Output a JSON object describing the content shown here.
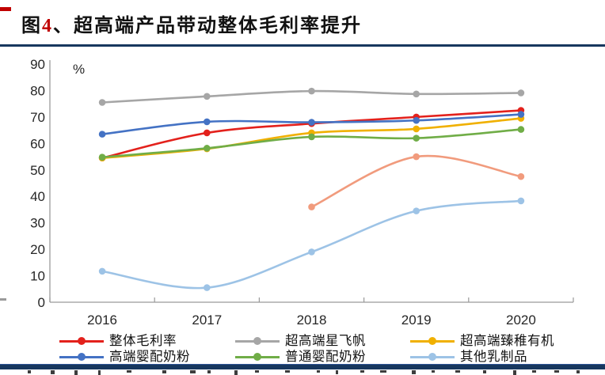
{
  "title": {
    "figure_word": "图",
    "figure_number": "4",
    "rest": "、超高端产品带动整体毛利率提升",
    "full": "图4、超高端产品带动整体毛利率提升"
  },
  "chart_data": {
    "type": "line",
    "title": "图4、超高端产品带动整体毛利率提升",
    "unit_label": "%",
    "x": [
      "2016",
      "2017",
      "2018",
      "2019",
      "2020"
    ],
    "ylim": [
      0,
      90
    ],
    "yticks": [
      0,
      10,
      20,
      30,
      40,
      50,
      60,
      70,
      80,
      90
    ],
    "grid": false,
    "legend_position": "bottom",
    "line_style": "smoothed with circular markers",
    "series": [
      {
        "name": "整体毛利率",
        "color": "#E3211C",
        "values": [
          54.5,
          64.0,
          67.5,
          70.0,
          72.5
        ],
        "in_legend": true
      },
      {
        "name": "超高端星飞帆",
        "color": "#A6A6A6",
        "values": [
          75.5,
          77.8,
          79.8,
          78.7,
          79.1
        ],
        "in_legend": true
      },
      {
        "name": "超高端臻稚有机",
        "color": "#F0B000",
        "values": [
          54.5,
          58.0,
          64.0,
          65.5,
          69.5
        ],
        "in_legend": true
      },
      {
        "name": "高端婴配奶粉",
        "color": "#4472C4",
        "values": [
          63.5,
          68.2,
          68.0,
          68.7,
          71.0
        ],
        "in_legend": true
      },
      {
        "name": "普通婴配奶粉",
        "color": "#70AD47",
        "values": [
          54.8,
          58.2,
          62.5,
          62.0,
          65.3
        ],
        "in_legend": true
      },
      {
        "name": "其他乳制品",
        "color": "#9DC3E6",
        "values": [
          11.7,
          5.5,
          19.0,
          34.5,
          38.3
        ],
        "in_legend": true
      },
      {
        "name": "",
        "color": "#F19B7D",
        "values": [
          null,
          null,
          36.0,
          55.0,
          47.5
        ],
        "in_legend": false
      }
    ]
  },
  "colors": {
    "rule_navy": "#17375E",
    "title_number_red": "#C00000",
    "axis_gray": "#9a9a9a"
  }
}
